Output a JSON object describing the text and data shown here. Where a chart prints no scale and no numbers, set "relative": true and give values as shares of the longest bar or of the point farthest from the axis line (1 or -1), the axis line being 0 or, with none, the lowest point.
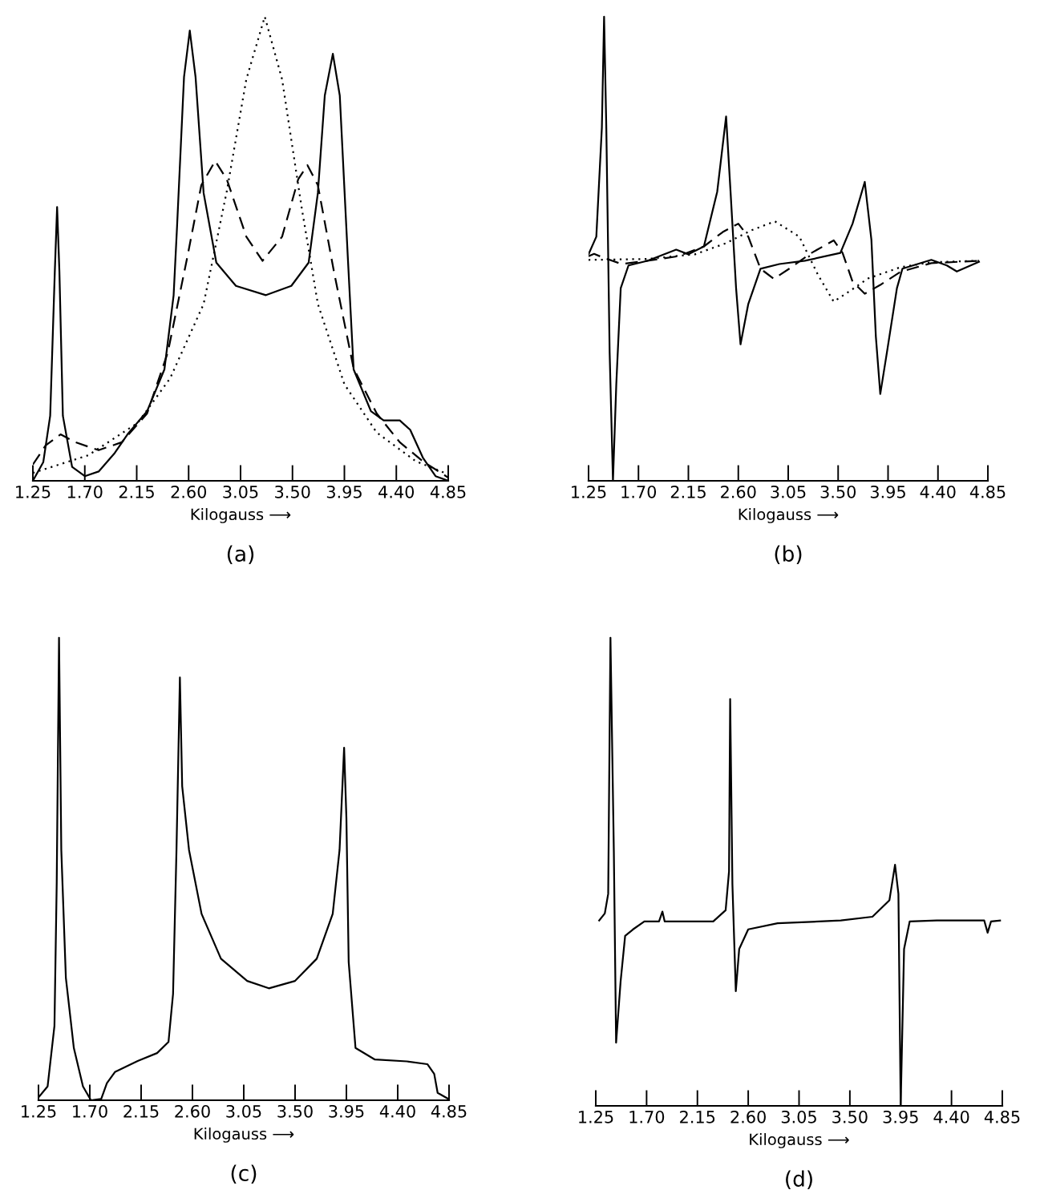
{
  "chart_data": [
    {
      "type": "line",
      "relative": true,
      "title": "(a)",
      "xlabel": "Kilogauss ⟶",
      "xlim": [
        1.25,
        4.85
      ],
      "xticks": [
        1.25,
        {
          "value": 1.7,
          "label": "1.70"
        },
        2.15,
        {
          "value": 2.6,
          "label": "2.60"
        },
        3.05,
        {
          "value": 3.5,
          "label": "3.50"
        },
        3.95,
        {
          "value": 4.4,
          "label": "4.40"
        },
        4.85
      ],
      "tick_labels": "x",
      "series": [
        {
          "color": "#000000",
          "line_style": "solid",
          "x": [
            1.25,
            1.34,
            1.4,
            1.44,
            1.46,
            1.48,
            1.51,
            1.59,
            1.7,
            1.82,
            1.96,
            2.07,
            2.24,
            2.39,
            2.47,
            2.5,
            2.56,
            2.61,
            2.66,
            2.73,
            2.84,
            3.01,
            3.27,
            3.49,
            3.64,
            3.72,
            3.78,
            3.85,
            3.91,
            3.98,
            4.03,
            4.18,
            4.29,
            4.43,
            4.52,
            4.63,
            4.74,
            4.85
          ],
          "values": [
            0.0,
            0.04,
            0.14,
            0.45,
            0.59,
            0.45,
            0.14,
            0.03,
            0.01,
            0.02,
            0.06,
            0.1,
            0.15,
            0.24,
            0.4,
            0.55,
            0.87,
            0.97,
            0.87,
            0.62,
            0.47,
            0.42,
            0.4,
            0.42,
            0.47,
            0.62,
            0.83,
            0.92,
            0.83,
            0.48,
            0.24,
            0.15,
            0.13,
            0.13,
            0.11,
            0.05,
            0.01,
            0.0
          ]
        },
        {
          "color": "#000000",
          "line_style": "dashed",
          "x": [
            1.25,
            1.36,
            1.49,
            1.62,
            1.82,
            2.02,
            2.24,
            2.42,
            2.59,
            2.71,
            2.83,
            2.93,
            3.1,
            3.24,
            3.41,
            3.55,
            3.63,
            3.72,
            3.86,
            4.03,
            4.23,
            4.43,
            4.63,
            4.85
          ],
          "values": [
            0.035,
            0.076,
            0.1,
            0.083,
            0.066,
            0.083,
            0.145,
            0.277,
            0.484,
            0.637,
            0.689,
            0.65,
            0.526,
            0.474,
            0.526,
            0.65,
            0.68,
            0.637,
            0.45,
            0.242,
            0.145,
            0.083,
            0.042,
            0.007
          ]
        },
        {
          "color": "#000000",
          "line_style": "dotted",
          "x": [
            1.25,
            1.73,
            2.16,
            2.44,
            2.73,
            2.93,
            3.1,
            3.26,
            3.41,
            3.58,
            3.72,
            3.95,
            4.23,
            4.57,
            4.85
          ],
          "values": [
            0.017,
            0.055,
            0.125,
            0.221,
            0.381,
            0.623,
            0.865,
            1.0,
            0.865,
            0.588,
            0.381,
            0.208,
            0.104,
            0.042,
            0.014
          ]
        }
      ]
    },
    {
      "type": "line",
      "relative": true,
      "title": "(b)",
      "xlabel": "Kilogauss ⟶",
      "xlim": [
        1.25,
        4.85
      ],
      "xticks": [
        1.25,
        {
          "value": 1.7,
          "label": "1.70"
        },
        2.15,
        {
          "value": 2.6,
          "label": "2.60"
        },
        3.05,
        {
          "value": 3.5,
          "label": "3.50"
        },
        3.95,
        {
          "value": 4.4,
          "label": "4.40"
        },
        4.85
      ],
      "tick_labels": "x",
      "series": [
        {
          "color": "#000000",
          "line_style": "solid",
          "x": [
            1.25,
            1.32,
            1.37,
            1.39,
            1.41,
            1.44,
            1.47,
            1.5,
            1.54,
            1.61,
            1.78,
            2.04,
            2.15,
            2.29,
            2.41,
            2.49,
            2.53,
            2.58,
            2.62,
            2.69,
            2.8,
            2.97,
            3.2,
            3.52,
            3.63,
            3.74,
            3.8,
            3.84,
            3.88,
            3.94,
            4.03,
            4.08,
            4.34,
            4.48,
            4.57,
            4.77
          ],
          "values": [
            0.488,
            0.526,
            0.761,
            1.0,
            0.761,
            0.277,
            0.0,
            0.208,
            0.415,
            0.464,
            0.474,
            0.498,
            0.488,
            0.505,
            0.623,
            0.785,
            0.623,
            0.415,
            0.294,
            0.381,
            0.457,
            0.467,
            0.474,
            0.491,
            0.554,
            0.644,
            0.519,
            0.311,
            0.187,
            0.277,
            0.415,
            0.457,
            0.476,
            0.464,
            0.451,
            0.472
          ]
        },
        {
          "color": "#000000",
          "line_style": "dashed",
          "x": [
            1.25,
            1.3,
            1.38,
            1.55,
            1.78,
            2.06,
            2.29,
            2.46,
            2.6,
            2.69,
            2.8,
            2.92,
            3.06,
            3.26,
            3.46,
            3.54,
            3.63,
            3.74,
            3.88,
            4.06,
            4.34,
            4.77
          ],
          "values": [
            0.484,
            0.489,
            0.481,
            0.467,
            0.474,
            0.484,
            0.505,
            0.536,
            0.554,
            0.526,
            0.457,
            0.435,
            0.457,
            0.491,
            0.518,
            0.491,
            0.429,
            0.403,
            0.422,
            0.45,
            0.469,
            0.474
          ]
        },
        {
          "color": "#000000",
          "line_style": "dotted",
          "x": [
            1.25,
            1.78,
            2.21,
            2.49,
            2.72,
            2.93,
            3.15,
            3.32,
            3.46,
            3.6,
            3.77,
            4.06,
            4.34,
            4.77
          ],
          "values": [
            0.476,
            0.478,
            0.488,
            0.512,
            0.54,
            0.559,
            0.526,
            0.443,
            0.386,
            0.408,
            0.436,
            0.46,
            0.471,
            0.474
          ]
        }
      ]
    },
    {
      "type": "line",
      "relative": true,
      "title": "(c)",
      "xlabel": "Kilogauss ⟶",
      "xlim": [
        1.25,
        4.85
      ],
      "xticks": [
        1.25,
        {
          "value": 1.7,
          "label": "1.70"
        },
        2.15,
        {
          "value": 2.6,
          "label": "2.60"
        },
        3.05,
        {
          "value": 3.5,
          "label": "3.50"
        },
        3.95,
        {
          "value": 4.4,
          "label": "4.40"
        },
        4.85
      ],
      "tick_labels": "x",
      "series": [
        {
          "color": "#000000",
          "line_style": "solid",
          "x": [
            1.25,
            1.33,
            1.39,
            1.41,
            1.43,
            1.45,
            1.49,
            1.56,
            1.64,
            1.71,
            1.8,
            1.85,
            1.92,
            2.12,
            2.29,
            2.39,
            2.43,
            2.46,
            2.49,
            2.51,
            2.57,
            2.68,
            2.85,
            3.08,
            3.27,
            3.5,
            3.69,
            3.83,
            3.89,
            3.93,
            3.95,
            3.97,
            4.03,
            4.2,
            4.48,
            4.66,
            4.72,
            4.75,
            4.85
          ],
          "values": [
            0.006,
            0.03,
            0.161,
            0.472,
            1.0,
            0.541,
            0.265,
            0.113,
            0.03,
            0.0,
            0.003,
            0.037,
            0.061,
            0.085,
            0.102,
            0.126,
            0.23,
            0.541,
            0.914,
            0.679,
            0.541,
            0.403,
            0.306,
            0.258,
            0.242,
            0.258,
            0.306,
            0.403,
            0.541,
            0.762,
            0.61,
            0.299,
            0.113,
            0.088,
            0.084,
            0.078,
            0.057,
            0.016,
            0.002
          ]
        }
      ]
    },
    {
      "type": "line",
      "relative": true,
      "title": "(d)",
      "xlabel": "Kilogauss ⟶",
      "xlim": [
        1.25,
        4.85
      ],
      "xticks": [
        1.25,
        {
          "value": 1.7,
          "label": "1.70"
        },
        2.15,
        {
          "value": 2.6,
          "label": "2.60"
        },
        3.05,
        {
          "value": 3.5,
          "label": "3.50"
        },
        3.95,
        {
          "value": 4.4,
          "label": "4.40"
        },
        4.85
      ],
      "tick_labels": "x",
      "series": [
        {
          "color": "#000000",
          "line_style": "solid",
          "x": [
            1.28,
            1.33,
            1.36,
            1.38,
            1.41,
            1.43,
            1.47,
            1.51,
            1.58,
            1.68,
            1.81,
            1.84,
            1.86,
            2.01,
            2.29,
            2.4,
            2.43,
            2.44,
            2.46,
            2.49,
            2.52,
            2.6,
            2.86,
            3.42,
            3.7,
            3.85,
            3.9,
            3.93,
            3.95,
            3.98,
            4.03,
            4.27,
            4.69,
            4.72,
            4.75,
            4.83
          ],
          "values": [
            0.396,
            0.411,
            0.453,
            1.0,
            0.543,
            0.135,
            0.266,
            0.363,
            0.377,
            0.394,
            0.394,
            0.415,
            0.394,
            0.394,
            0.394,
            0.418,
            0.501,
            0.869,
            0.473,
            0.245,
            0.335,
            0.377,
            0.39,
            0.396,
            0.404,
            0.439,
            0.515,
            0.453,
            0.0,
            0.335,
            0.394,
            0.396,
            0.396,
            0.37,
            0.394,
            0.396
          ]
        }
      ]
    }
  ]
}
